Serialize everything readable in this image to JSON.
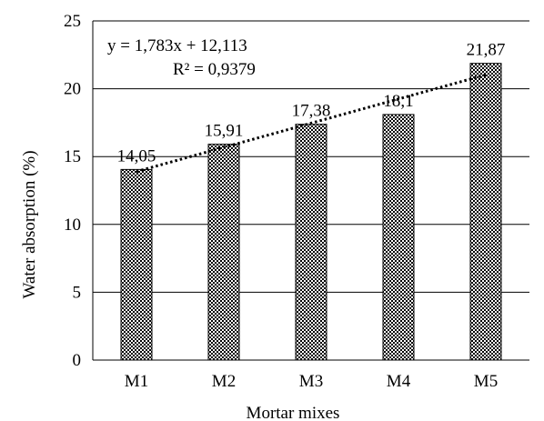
{
  "chart_data": {
    "type": "bar",
    "categories": [
      "M1",
      "M2",
      "M3",
      "M4",
      "M5"
    ],
    "values": [
      14.05,
      15.91,
      17.38,
      18.1,
      21.87
    ],
    "data_labels": [
      "14,05",
      "15,91",
      "17,38",
      "18,1",
      "21,87"
    ],
    "ylabel": "Water absorption (%)",
    "xlabel": "Mortar mixes",
    "ylim": [
      0,
      25
    ],
    "yticks": [
      0,
      5,
      10,
      15,
      20,
      25
    ],
    "ytick_labels": [
      "0",
      "5",
      "10",
      "15",
      "20",
      "25"
    ],
    "grid": "horizontal",
    "bar_pattern": "checkerboard",
    "trendline": {
      "type": "linear",
      "slope": 1.783,
      "intercept": 12.113,
      "style": "dotted",
      "equation_label": "y = 1,783x + 12,113",
      "r2_label": "R² = 0,9379"
    },
    "colors": {
      "bar_dark": "#000000",
      "bar_light": "#ffffff",
      "grid": "#000000",
      "trendline": "#000000"
    }
  }
}
